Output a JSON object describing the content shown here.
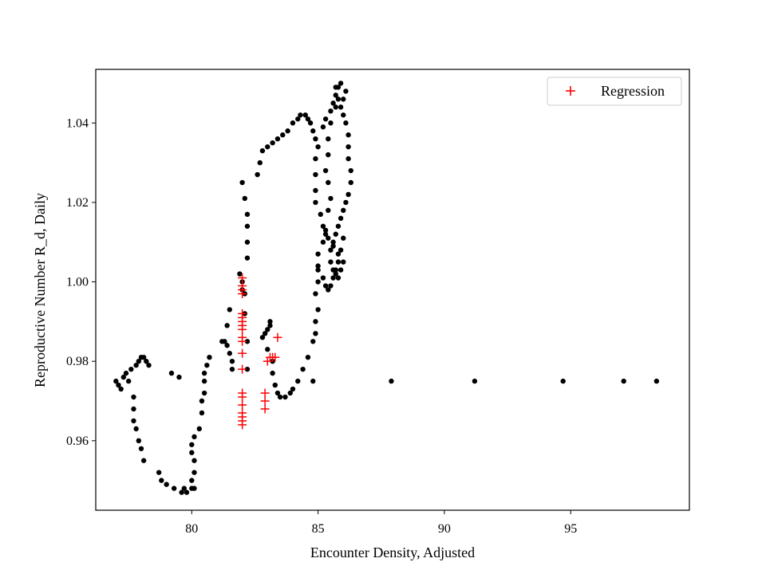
{
  "chart_data": {
    "type": "scatter",
    "title": "",
    "xlabel": "Encounter Density, Adjusted",
    "ylabel": "Reproductive Number R_d, Daily",
    "xlim": [
      76.2,
      99.7
    ],
    "ylim": [
      0.9425,
      1.0535
    ],
    "xticks": [
      80,
      85,
      90,
      95
    ],
    "yticks": [
      0.96,
      0.98,
      1.0,
      1.02,
      1.04
    ],
    "xtick_labels": [
      "80",
      "85",
      "90",
      "95"
    ],
    "ytick_labels": [
      "0.96",
      "0.98",
      "1.00",
      "1.02",
      "1.04"
    ],
    "grid": false,
    "legend": {
      "position": "top-right",
      "entries": [
        "Regression"
      ]
    },
    "series": [
      {
        "name": "",
        "marker": "dot",
        "color": "#000000",
        "points": [
          [
            77.0,
            0.975
          ],
          [
            77.1,
            0.974
          ],
          [
            77.2,
            0.973
          ],
          [
            77.3,
            0.976
          ],
          [
            77.4,
            0.977
          ],
          [
            77.6,
            0.978
          ],
          [
            77.5,
            0.975
          ],
          [
            77.7,
            0.971
          ],
          [
            77.7,
            0.968
          ],
          [
            77.7,
            0.965
          ],
          [
            77.8,
            0.963
          ],
          [
            77.9,
            0.96
          ],
          [
            78.0,
            0.958
          ],
          [
            78.1,
            0.955
          ],
          [
            77.8,
            0.979
          ],
          [
            77.9,
            0.98
          ],
          [
            78.0,
            0.981
          ],
          [
            78.1,
            0.981
          ],
          [
            78.2,
            0.98
          ],
          [
            78.3,
            0.979
          ],
          [
            78.7,
            0.952
          ],
          [
            78.8,
            0.95
          ],
          [
            79.0,
            0.949
          ],
          [
            79.2,
            0.977
          ],
          [
            79.3,
            0.948
          ],
          [
            79.5,
            0.976
          ],
          [
            79.6,
            0.947
          ],
          [
            79.7,
            0.948
          ],
          [
            79.8,
            0.947
          ],
          [
            80.0,
            0.948
          ],
          [
            80.1,
            0.948
          ],
          [
            80.0,
            0.95
          ],
          [
            80.1,
            0.952
          ],
          [
            80.1,
            0.955
          ],
          [
            80.0,
            0.957
          ],
          [
            80.0,
            0.959
          ],
          [
            80.1,
            0.961
          ],
          [
            80.3,
            0.963
          ],
          [
            80.4,
            0.967
          ],
          [
            80.4,
            0.97
          ],
          [
            80.5,
            0.972
          ],
          [
            80.5,
            0.975
          ],
          [
            80.5,
            0.977
          ],
          [
            80.6,
            0.979
          ],
          [
            80.7,
            0.981
          ],
          [
            81.2,
            0.985
          ],
          [
            81.3,
            0.985
          ],
          [
            81.4,
            0.984
          ],
          [
            81.5,
            0.982
          ],
          [
            81.6,
            0.98
          ],
          [
            81.6,
            0.978
          ],
          [
            81.4,
            0.989
          ],
          [
            81.5,
            0.993
          ],
          [
            81.9,
            1.002
          ],
          [
            82.0,
            1.0
          ],
          [
            82.0,
            0.998
          ],
          [
            82.1,
            0.997
          ],
          [
            82.1,
            0.992
          ],
          [
            82.2,
            0.985
          ],
          [
            82.2,
            0.978
          ],
          [
            82.0,
            1.025
          ],
          [
            82.1,
            1.021
          ],
          [
            82.2,
            1.017
          ],
          [
            82.2,
            1.014
          ],
          [
            82.2,
            1.01
          ],
          [
            82.2,
            1.006
          ],
          [
            82.8,
            0.986
          ],
          [
            82.9,
            0.987
          ],
          [
            83.0,
            0.988
          ],
          [
            83.1,
            0.989
          ],
          [
            83.1,
            0.99
          ],
          [
            83.0,
            0.983
          ],
          [
            83.2,
            0.98
          ],
          [
            83.2,
            0.977
          ],
          [
            83.3,
            0.974
          ],
          [
            83.4,
            0.972
          ],
          [
            83.5,
            0.971
          ],
          [
            83.7,
            0.971
          ],
          [
            83.9,
            0.972
          ],
          [
            84.0,
            0.973
          ],
          [
            84.2,
            0.975
          ],
          [
            84.4,
            0.978
          ],
          [
            84.6,
            0.981
          ],
          [
            84.8,
            0.975
          ],
          [
            84.8,
            0.985
          ],
          [
            84.9,
            0.987
          ],
          [
            84.9,
            0.99
          ],
          [
            85.0,
            0.993
          ],
          [
            84.9,
            0.997
          ],
          [
            85.0,
            1.0
          ],
          [
            85.0,
            1.003
          ],
          [
            82.6,
            1.027
          ],
          [
            82.7,
            1.03
          ],
          [
            82.8,
            1.033
          ],
          [
            83.0,
            1.034
          ],
          [
            83.2,
            1.035
          ],
          [
            83.4,
            1.036
          ],
          [
            83.6,
            1.037
          ],
          [
            83.8,
            1.038
          ],
          [
            84.0,
            1.04
          ],
          [
            84.2,
            1.041
          ],
          [
            84.3,
            1.042
          ],
          [
            84.5,
            1.042
          ],
          [
            84.6,
            1.041
          ],
          [
            84.7,
            1.04
          ],
          [
            84.8,
            1.038
          ],
          [
            84.9,
            1.036
          ],
          [
            85.0,
            1.034
          ],
          [
            84.9,
            1.031
          ],
          [
            84.9,
            1.027
          ],
          [
            84.9,
            1.023
          ],
          [
            84.9,
            1.02
          ],
          [
            85.1,
            1.017
          ],
          [
            85.2,
            1.014
          ],
          [
            85.3,
            1.012
          ],
          [
            85.2,
            1.01
          ],
          [
            85.0,
            1.007
          ],
          [
            85.0,
            1.004
          ],
          [
            85.2,
            1.001
          ],
          [
            85.3,
            0.999
          ],
          [
            85.4,
            0.998
          ],
          [
            85.5,
            0.999
          ],
          [
            85.6,
            1.001
          ],
          [
            85.7,
            1.003
          ],
          [
            85.8,
            1.005
          ],
          [
            85.9,
            1.008
          ],
          [
            86.0,
            1.011
          ],
          [
            85.2,
            1.039
          ],
          [
            85.3,
            1.041
          ],
          [
            85.5,
            1.043
          ],
          [
            85.6,
            1.045
          ],
          [
            85.7,
            1.047
          ],
          [
            85.8,
            1.049
          ],
          [
            85.9,
            1.05
          ],
          [
            86.1,
            1.048
          ],
          [
            86.0,
            1.046
          ],
          [
            85.9,
            1.044
          ],
          [
            86.0,
            1.042
          ],
          [
            86.1,
            1.04
          ],
          [
            86.2,
            1.037
          ],
          [
            86.2,
            1.034
          ],
          [
            86.2,
            1.031
          ],
          [
            86.3,
            1.028
          ],
          [
            86.3,
            1.025
          ],
          [
            86.2,
            1.022
          ],
          [
            86.1,
            1.02
          ],
          [
            86.0,
            1.018
          ],
          [
            85.9,
            1.016
          ],
          [
            85.8,
            1.014
          ],
          [
            85.7,
            1.012
          ],
          [
            85.6,
            1.01
          ],
          [
            85.5,
            1.008
          ],
          [
            85.5,
            1.005
          ],
          [
            85.6,
            1.003
          ],
          [
            85.7,
            1.002
          ],
          [
            85.8,
            1.001
          ],
          [
            85.9,
            1.003
          ],
          [
            86.0,
            1.005
          ],
          [
            85.8,
            1.007
          ],
          [
            85.6,
            1.009
          ],
          [
            85.4,
            1.011
          ],
          [
            85.3,
            1.013
          ],
          [
            85.4,
            1.018
          ],
          [
            85.5,
            1.021
          ],
          [
            85.4,
            1.025
          ],
          [
            85.3,
            1.028
          ],
          [
            85.4,
            1.032
          ],
          [
            85.4,
            1.036
          ],
          [
            85.5,
            1.04
          ],
          [
            85.7,
            1.044
          ],
          [
            85.8,
            1.046
          ],
          [
            85.7,
            1.049
          ],
          [
            87.9,
            0.975
          ],
          [
            91.2,
            0.975
          ],
          [
            94.7,
            0.975
          ],
          [
            97.1,
            0.975
          ],
          [
            98.4,
            0.975
          ]
        ]
      },
      {
        "name": "Regression",
        "marker": "plus",
        "color": "#ff0000",
        "points": [
          [
            82.0,
            1.001
          ],
          [
            82.0,
            0.999
          ],
          [
            82.0,
            0.998
          ],
          [
            82.0,
            0.997
          ],
          [
            82.0,
            0.992
          ],
          [
            82.0,
            0.991
          ],
          [
            82.0,
            0.99
          ],
          [
            82.0,
            0.989
          ],
          [
            82.0,
            0.988
          ],
          [
            82.0,
            0.986
          ],
          [
            82.0,
            0.985
          ],
          [
            82.0,
            0.982
          ],
          [
            82.0,
            0.978
          ],
          [
            82.0,
            0.972
          ],
          [
            82.0,
            0.971
          ],
          [
            82.0,
            0.969
          ],
          [
            82.0,
            0.967
          ],
          [
            82.0,
            0.966
          ],
          [
            82.0,
            0.965
          ],
          [
            82.0,
            0.964
          ],
          [
            82.9,
            0.972
          ],
          [
            82.9,
            0.97
          ],
          [
            82.9,
            0.968
          ],
          [
            83.0,
            0.98
          ],
          [
            83.1,
            0.981
          ],
          [
            83.2,
            0.981
          ],
          [
            83.3,
            0.981
          ],
          [
            83.4,
            0.986
          ]
        ]
      }
    ]
  }
}
